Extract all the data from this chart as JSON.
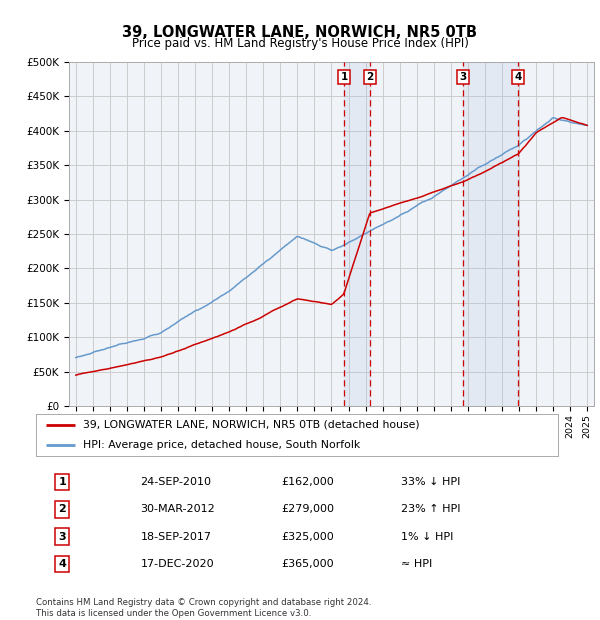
{
  "title": "39, LONGWATER LANE, NORWICH, NR5 0TB",
  "subtitle": "Price paid vs. HM Land Registry's House Price Index (HPI)",
  "ylim": [
    0,
    500000
  ],
  "yticks": [
    0,
    50000,
    100000,
    150000,
    200000,
    250000,
    300000,
    350000,
    400000,
    450000,
    500000
  ],
  "ytick_labels": [
    "£0",
    "£50K",
    "£100K",
    "£150K",
    "£200K",
    "£250K",
    "£300K",
    "£350K",
    "£400K",
    "£450K",
    "£500K"
  ],
  "xlim_start": 1994.6,
  "xlim_end": 2025.4,
  "hpi_color": "#6699cc",
  "price_color": "#cc0000",
  "grid_color": "#cccccc",
  "background_color": "#f0f4f8",
  "plot_bg_color": "#f0f4f8",
  "transactions": [
    {
      "num": 1,
      "date": "24-SEP-2010",
      "price": 162000,
      "pct": "33% ↓ HPI",
      "x": 2010.73
    },
    {
      "num": 2,
      "date": "30-MAR-2012",
      "price": 279000,
      "pct": "23% ↑ HPI",
      "x": 2012.25
    },
    {
      "num": 3,
      "date": "18-SEP-2017",
      "price": 325000,
      "pct": "1% ↓ HPI",
      "x": 2017.73
    },
    {
      "num": 4,
      "date": "17-DEC-2020",
      "price": 365000,
      "pct": "≈ HPI",
      "x": 2020.96
    }
  ],
  "footer": "Contains HM Land Registry data © Crown copyright and database right 2024.\nThis data is licensed under the Open Government Licence v3.0.",
  "legend_line1": "39, LONGWATER LANE, NORWICH, NR5 0TB (detached house)",
  "legend_line2": "HPI: Average price, detached house, South Norfolk",
  "table_rows": [
    [
      "1",
      "24-SEP-2010",
      "£162,000",
      "33% ↓ HPI"
    ],
    [
      "2",
      "30-MAR-2012",
      "£279,000",
      "23% ↑ HPI"
    ],
    [
      "3",
      "18-SEP-2017",
      "£325,000",
      "1% ↓ HPI"
    ],
    [
      "4",
      "17-DEC-2020",
      "£365,000",
      "≈ HPI"
    ]
  ]
}
